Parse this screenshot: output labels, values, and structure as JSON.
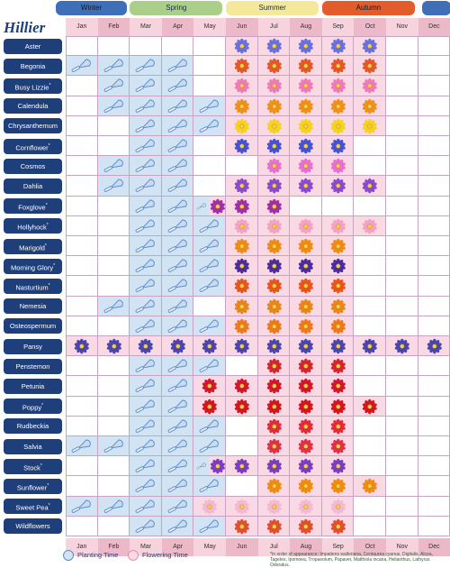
{
  "brand": "Hillier",
  "seasons": [
    "Winter",
    "Spring",
    "Summer",
    "Autumn"
  ],
  "season_colors": {
    "Winter": "#3f6fb6",
    "Spring": "#a9cf8b",
    "Summer": "#f4e89a",
    "Autumn": "#e35c2b"
  },
  "months": [
    "Jan",
    "Feb",
    "Mar",
    "Apr",
    "May",
    "Jun",
    "Jul",
    "Aug",
    "Sep",
    "Oct",
    "Nov",
    "Dec"
  ],
  "colors": {
    "planting": "#d2e4f4",
    "flowering": "#f8d9e4",
    "label_bg": "#1f3f7a",
    "grid": "#9bb6d8"
  },
  "legend": {
    "planting": "Planting Time",
    "flowering": "Flowering Time"
  },
  "footnote": "*In order of appearance: Impatiens walleriana, Centaurea cyanus, Digitalis, Alcea, Tagetes, Ipomoea, Tropaeolum, Papaver, Matthiola incana, Helianthus, Lathyrus Odoratus.",
  "plants": [
    {
      "name": "Aster",
      "star": false,
      "plant": [],
      "flower": [
        6,
        7,
        8,
        9,
        10
      ],
      "color": "#6a6fe0"
    },
    {
      "name": "Begonia",
      "star": false,
      "plant": [
        1,
        2,
        3,
        4
      ],
      "flower": [
        6,
        7,
        8,
        9,
        10
      ],
      "color": "#e2582a"
    },
    {
      "name": "Busy Lizzie",
      "star": true,
      "plant": [
        2,
        3,
        4
      ],
      "flower": [
        6,
        7,
        8,
        9,
        10
      ],
      "color": "#f07ab8"
    },
    {
      "name": "Calendula",
      "star": false,
      "plant": [
        2,
        3,
        4,
        5
      ],
      "flower": [
        6,
        7,
        8,
        9,
        10
      ],
      "color": "#f0901c"
    },
    {
      "name": "Chrysanthemum",
      "star": false,
      "plant": [
        3,
        4,
        5
      ],
      "flower": [
        6,
        7,
        8,
        9,
        10
      ],
      "color": "#f5d21e"
    },
    {
      "name": "Cornflower",
      "star": true,
      "plant": [
        3,
        4
      ],
      "flower": [
        6,
        7,
        8,
        9
      ],
      "color": "#4452d8"
    },
    {
      "name": "Cosmos",
      "star": false,
      "plant": [
        2,
        3,
        4
      ],
      "flower": [
        7,
        8,
        9
      ],
      "color": "#e86fcf"
    },
    {
      "name": "Dahlia",
      "star": false,
      "plant": [
        2,
        3,
        4
      ],
      "flower": [
        6,
        7,
        8,
        9,
        10
      ],
      "color": "#8a4ad0"
    },
    {
      "name": "Foxglove",
      "star": true,
      "plant": [
        3,
        4,
        5
      ],
      "flower": [
        5,
        6,
        7
      ],
      "color": "#a12ea8"
    },
    {
      "name": "Hollyhock",
      "star": true,
      "plant": [
        3,
        4,
        5
      ],
      "flower": [
        6,
        7,
        8,
        9,
        10
      ],
      "color": "#f4a1c2"
    },
    {
      "name": "Marigold",
      "star": true,
      "plant": [
        3,
        4,
        5
      ],
      "flower": [
        6,
        7,
        8,
        9
      ],
      "color": "#f08a16"
    },
    {
      "name": "Morning Glory",
      "star": true,
      "plant": [
        3,
        4,
        5
      ],
      "flower": [
        6,
        7,
        8,
        9
      ],
      "color": "#4a2ca0"
    },
    {
      "name": "Nasturtium",
      "star": true,
      "plant": [
        3,
        4,
        5
      ],
      "flower": [
        6,
        7,
        8,
        9
      ],
      "color": "#e8541c"
    },
    {
      "name": "Nemesia",
      "star": false,
      "plant": [
        2,
        3,
        4
      ],
      "flower": [
        6,
        7,
        8,
        9
      ],
      "color": "#e8861c"
    },
    {
      "name": "Osteospermum",
      "star": false,
      "plant": [
        3,
        4,
        5
      ],
      "flower": [
        6,
        7,
        8,
        9
      ],
      "color": "#f0781c"
    },
    {
      "name": "Pansy",
      "star": false,
      "plant": [],
      "flower": [
        1,
        2,
        3,
        4,
        5,
        6,
        7,
        8,
        9,
        10,
        11,
        12
      ],
      "color": "#4a44b0"
    },
    {
      "name": "Penstemon",
      "star": false,
      "plant": [
        3,
        4,
        5
      ],
      "flower": [
        7,
        8,
        9
      ],
      "color": "#d42430"
    },
    {
      "name": "Petunia",
      "star": false,
      "plant": [
        3,
        4
      ],
      "flower": [
        5,
        6,
        7,
        8,
        9
      ],
      "color": "#d4152c"
    },
    {
      "name": "Poppy",
      "star": true,
      "plant": [
        3,
        4
      ],
      "flower": [
        5,
        6,
        7,
        8,
        9,
        10
      ],
      "color": "#d41420"
    },
    {
      "name": "Rudbeckia",
      "star": false,
      "plant": [
        3,
        4,
        5
      ],
      "flower": [
        7,
        8,
        9
      ],
      "color": "#e22a3a"
    },
    {
      "name": "Salvia",
      "star": false,
      "plant": [
        1,
        2,
        3,
        4,
        5
      ],
      "flower": [
        7,
        8,
        9
      ],
      "color": "#e03048"
    },
    {
      "name": "Stock",
      "star": true,
      "plant": [
        3,
        4,
        5
      ],
      "flower": [
        5,
        6,
        7,
        8,
        9
      ],
      "color": "#7a3cc0"
    },
    {
      "name": "Sunflower",
      "star": true,
      "plant": [
        3,
        4,
        5
      ],
      "flower": [
        7,
        8,
        9,
        10
      ],
      "color": "#f08a10"
    },
    {
      "name": "Sweet Pea",
      "star": true,
      "plant": [
        1,
        2,
        3,
        4
      ],
      "flower": [
        5,
        6,
        7,
        8,
        9
      ],
      "color": "#f4b8d2"
    },
    {
      "name": "Wildflowers",
      "star": false,
      "plant": [
        3,
        4,
        5
      ],
      "flower": [
        6,
        7,
        8,
        9
      ],
      "color": "#e05030"
    }
  ]
}
